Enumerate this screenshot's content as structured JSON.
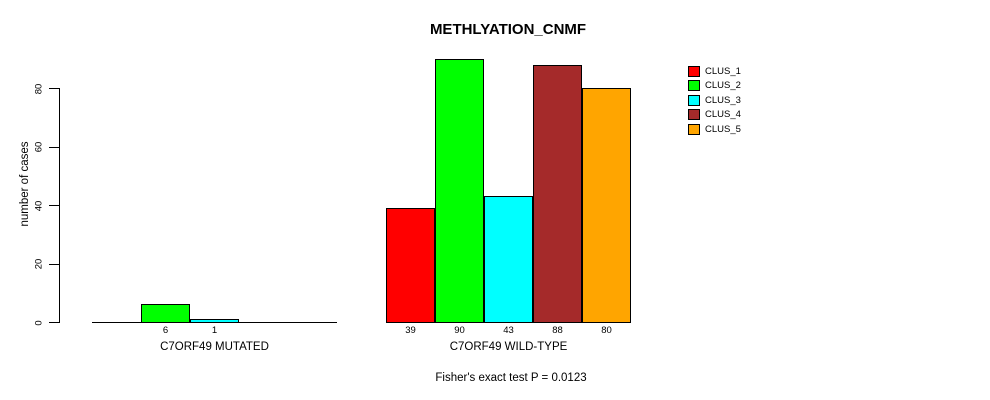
{
  "chart_data": {
    "type": "bar",
    "title": "METHLYATION_CNMF",
    "ylabel": "number of cases",
    "xlabel": "",
    "ylim": [
      0,
      90
    ],
    "yticks": [
      0,
      20,
      40,
      60,
      80
    ],
    "grid": false,
    "legend_position": "top-right",
    "legend": [
      {
        "name": "CLUS_1",
        "color": "#FF0000"
      },
      {
        "name": "CLUS_2",
        "color": "#00FF00"
      },
      {
        "name": "CLUS_3",
        "color": "#00FFFF"
      },
      {
        "name": "CLUS_4",
        "color": "#A52A2A"
      },
      {
        "name": "CLUS_5",
        "color": "#FFA500"
      }
    ],
    "groups": [
      {
        "label": "C7ORF49 MUTATED",
        "values": [
          0,
          6,
          1,
          0,
          0
        ]
      },
      {
        "label": "C7ORF49 WILD-TYPE",
        "values": [
          39,
          90,
          43,
          88,
          80
        ]
      }
    ],
    "annotation": "Fisher's exact test P = 0.0123"
  }
}
